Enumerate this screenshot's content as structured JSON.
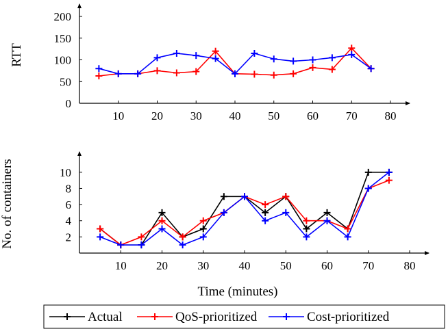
{
  "colors": {
    "Actual": "#000000",
    "QoS-prioritized": "#ff0000",
    "Cost-prioritized": "#0000ff"
  },
  "legend": {
    "placement": "bottom",
    "items": [
      "Actual",
      "QoS-prioritized",
      "Cost-prioritized"
    ]
  },
  "chart_data": [
    {
      "type": "line",
      "title": "",
      "xlabel": "",
      "ylabel": "RTT",
      "xlim": [
        0,
        80
      ],
      "ylim": [
        0,
        200
      ],
      "x_ticks": [
        10,
        20,
        30,
        40,
        50,
        60,
        70,
        80
      ],
      "y_ticks": [
        0,
        50,
        100,
        150,
        200
      ],
      "x": [
        5,
        10,
        15,
        20,
        25,
        30,
        35,
        40,
        45,
        50,
        55,
        60,
        65,
        70,
        75
      ],
      "series": [
        {
          "name": "QoS-prioritized",
          "values": [
            63,
            68,
            68,
            75,
            70,
            73,
            120,
            68,
            67,
            65,
            68,
            82,
            78,
            127,
            80
          ]
        },
        {
          "name": "Cost-prioritized",
          "values": [
            80,
            68,
            68,
            105,
            115,
            110,
            103,
            68,
            115,
            102,
            97,
            100,
            105,
            112,
            80
          ]
        }
      ]
    },
    {
      "type": "line",
      "title": "",
      "xlabel": "Time (minutes)",
      "ylabel": "No. of containers",
      "xlim": [
        0,
        80
      ],
      "ylim": [
        0,
        11
      ],
      "x_ticks": [
        10,
        20,
        30,
        40,
        50,
        60,
        70,
        80
      ],
      "y_ticks": [
        2,
        4,
        6,
        8,
        10
      ],
      "x": [
        5,
        10,
        15,
        20,
        25,
        30,
        35,
        40,
        45,
        50,
        55,
        60,
        65,
        70,
        75
      ],
      "series": [
        {
          "name": "Actual",
          "values": [
            3,
            1,
            1,
            5,
            2,
            3,
            7,
            7,
            5,
            7,
            3,
            5,
            3,
            10,
            10
          ]
        },
        {
          "name": "QoS-prioritized",
          "values": [
            3,
            1,
            2,
            4,
            2,
            4,
            5,
            7,
            6,
            7,
            4,
            4,
            3,
            8,
            9
          ]
        },
        {
          "name": "Cost-prioritized",
          "values": [
            2,
            1,
            1,
            3,
            1,
            2,
            5,
            7,
            4,
            5,
            2,
            4,
            2,
            8,
            10
          ]
        }
      ]
    }
  ]
}
